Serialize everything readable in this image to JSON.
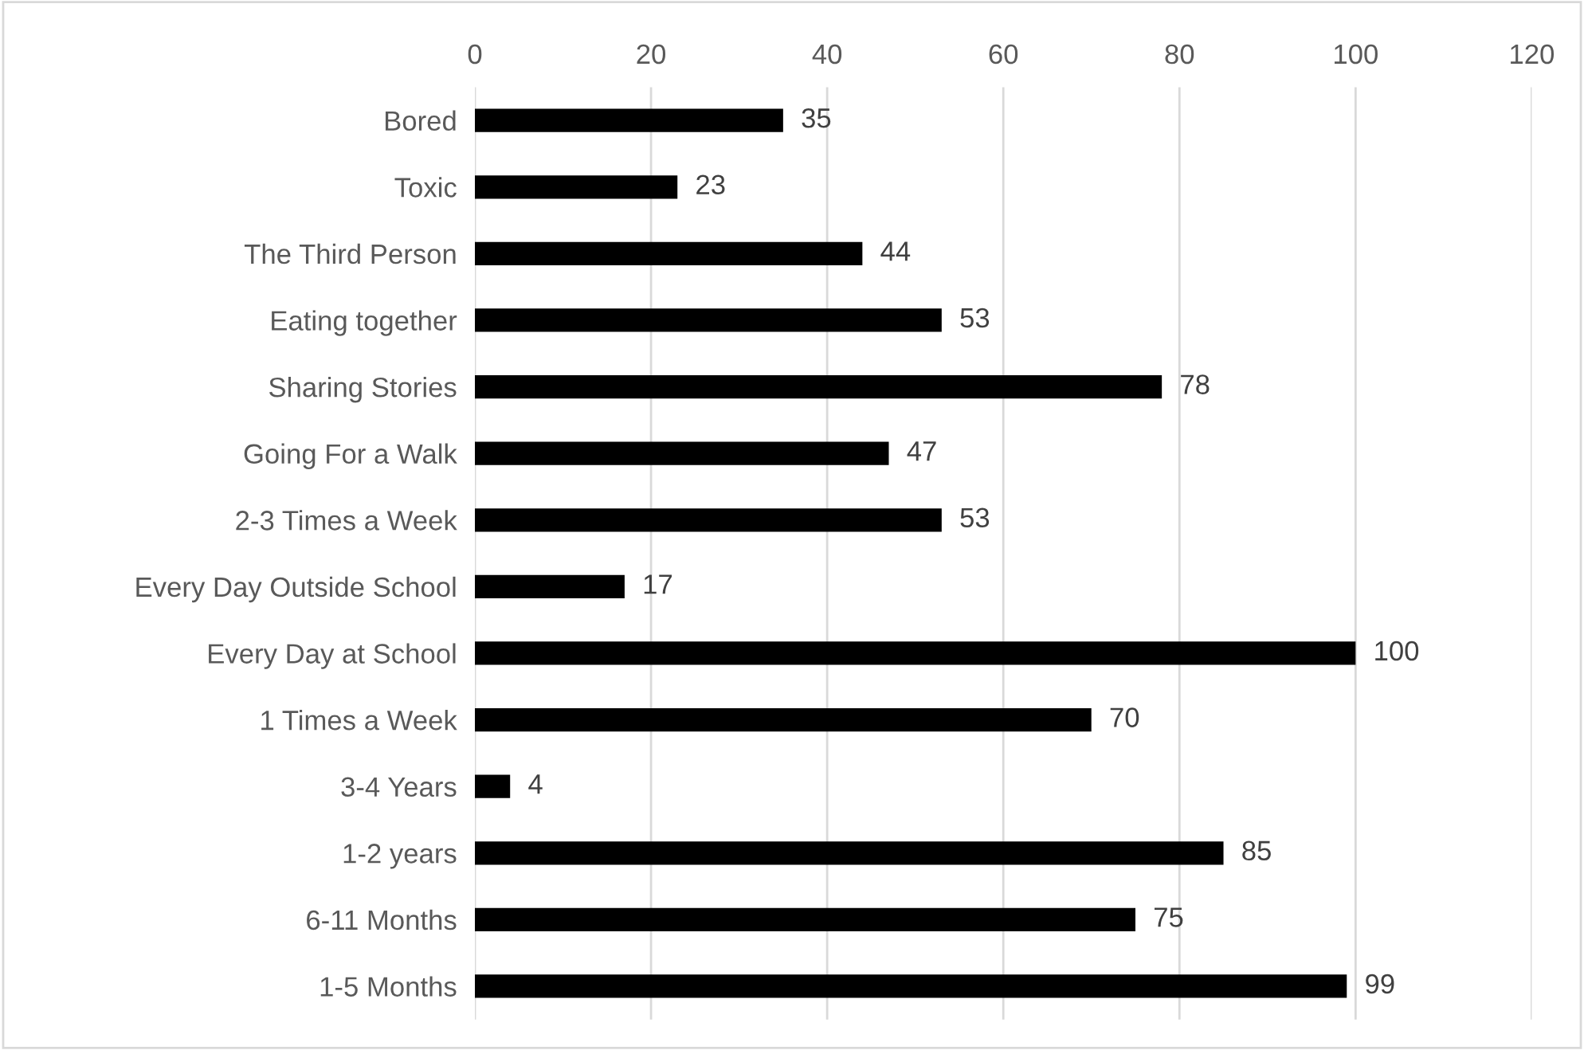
{
  "chart_data": {
    "type": "bar",
    "orientation": "horizontal",
    "categories": [
      "Bored",
      "Toxic",
      "The Third Person",
      "Eating together",
      "Sharing Stories",
      "Going For a Walk",
      "2-3 Times a Week",
      "Every Day Outside School",
      "Every Day at School",
      "1 Times a Week",
      "3-4 Years",
      "1-2 years",
      "6-11 Months",
      "1-5 Months"
    ],
    "values": [
      35,
      23,
      44,
      53,
      78,
      47,
      53,
      17,
      100,
      70,
      4,
      85,
      75,
      99
    ],
    "color": "#000000",
    "xlim": [
      0,
      120
    ],
    "xticks": [
      0,
      20,
      40,
      60,
      80,
      100,
      120
    ],
    "grid": "x",
    "data_labels": true
  }
}
